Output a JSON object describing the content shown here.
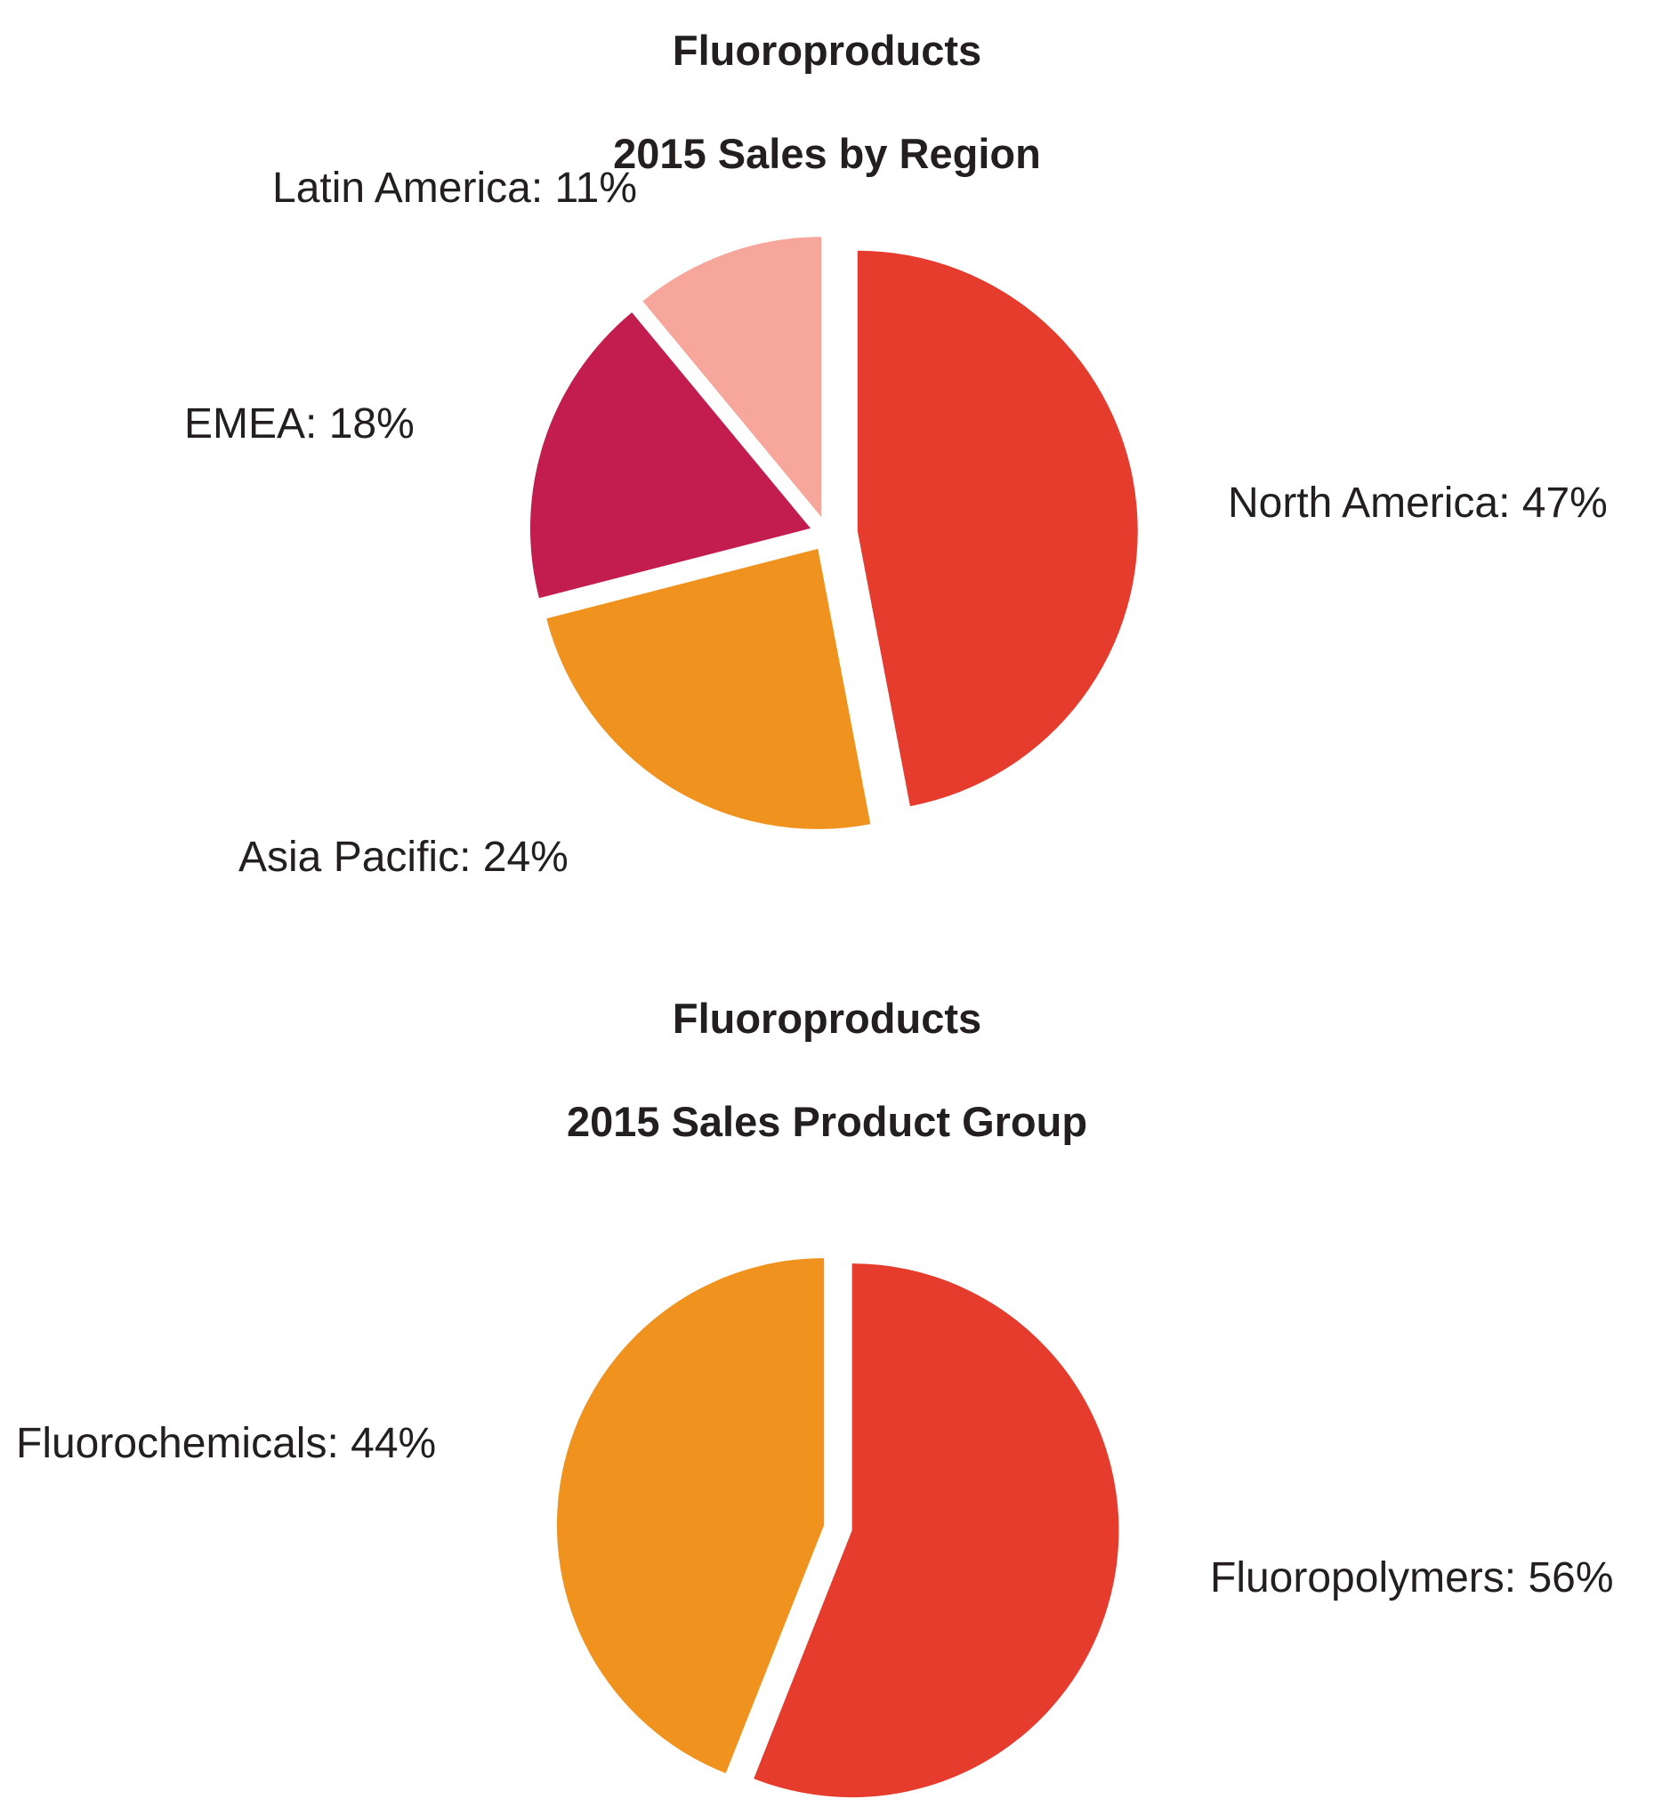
{
  "page": {
    "background_color": "#FFFFFF",
    "text_color": "#231F20"
  },
  "chart_data": [
    {
      "type": "pie",
      "title_line1": "Fluoroproducts",
      "title_line2": "2015 Sales by Region",
      "start_angle_deg": 0,
      "direction": "clockwise",
      "total": 100,
      "categories": [
        "North America",
        "Asia Pacific",
        "EMEA",
        "Latin America"
      ],
      "values": [
        47,
        24,
        18,
        11
      ],
      "slices": [
        {
          "label": "North America",
          "value": 47,
          "label_text": "North America: 47%",
          "color": "#E53C2E",
          "explode": 34
        },
        {
          "label": "Asia Pacific",
          "value": 24,
          "label_text": "Asia Pacific: 24%",
          "color": "#F0921E",
          "explode": 20
        },
        {
          "label": "EMEA",
          "value": 18,
          "label_text": "EMEA: 18%",
          "color": "#C31C4E",
          "explode": 20
        },
        {
          "label": "Latin America",
          "value": 11,
          "label_text": "Latin America: 11%",
          "color": "#F6A69B",
          "explode": 20
        }
      ],
      "legend": "none",
      "labels_placement": "outside-callout-free"
    },
    {
      "type": "pie",
      "title_line1": "Fluoroproducts",
      "title_line2": "2015 Sales Product Group",
      "start_angle_deg": 0,
      "direction": "clockwise",
      "total": 100,
      "categories": [
        "Fluoropolymers",
        "Fluorochemicals"
      ],
      "values": [
        56,
        44
      ],
      "slices": [
        {
          "label": "Fluoropolymers",
          "value": 56,
          "label_text": "Fluoropolymers: 56%",
          "color": "#E53C2E",
          "explode": 22
        },
        {
          "label": "Fluorochemicals",
          "value": 44,
          "label_text": "Fluorochemicals: 44%",
          "color": "#F0921E",
          "explode": 10
        }
      ],
      "legend": "none",
      "labels_placement": "outside-callout-free"
    }
  ]
}
